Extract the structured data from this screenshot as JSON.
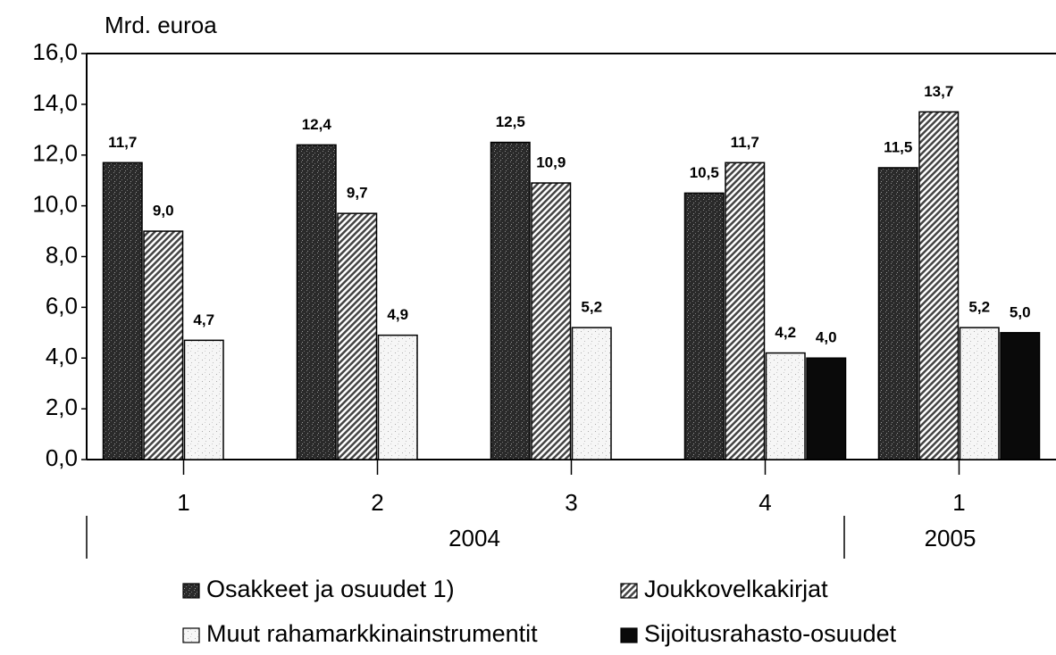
{
  "chart_data": {
    "type": "bar",
    "y_label": "Mrd. euroa",
    "categories": [
      "1",
      "2",
      "3",
      "4",
      "1"
    ],
    "year_groups": [
      {
        "label": "2004",
        "size": 4
      },
      {
        "label": "2005",
        "size": 1
      }
    ],
    "series": [
      {
        "name": "Osakkeet ja osuudet 1)",
        "color": "#2a2a2a",
        "pattern": "speckle",
        "values": [
          11.7,
          12.4,
          12.5,
          10.5,
          11.5
        ],
        "value_labels": [
          "11,7",
          "12,4",
          "12,5",
          "10,5",
          "11,5"
        ]
      },
      {
        "name": "Joukkovelkakirjat",
        "color": "#555555",
        "pattern": "hatch",
        "values": [
          9.0,
          9.7,
          10.9,
          11.7,
          13.7
        ],
        "value_labels": [
          "9,0",
          "9,7",
          "10,9",
          "11,7",
          "13,7"
        ]
      },
      {
        "name": "Muut rahamarkkinainstrumentit",
        "color": "#f2f2f2",
        "pattern": "speckle-light",
        "values": [
          4.7,
          4.9,
          5.2,
          4.2,
          5.2
        ],
        "value_labels": [
          "4,7",
          "4,9",
          "5,2",
          "4,2",
          "5,2"
        ]
      },
      {
        "name": "Sijoitusrahasto-osuudet",
        "color": "#0a0a0a",
        "pattern": "solid",
        "values": [
          null,
          null,
          null,
          4.0,
          5.0
        ],
        "value_labels": [
          null,
          null,
          null,
          "4,0",
          "5,0"
        ]
      }
    ],
    "ylim": [
      0,
      16
    ],
    "yticks": [
      {
        "value": 0,
        "label": "0,0"
      },
      {
        "value": 2,
        "label": "2,0"
      },
      {
        "value": 4,
        "label": "4,0"
      },
      {
        "value": 6,
        "label": "6,0"
      },
      {
        "value": 8,
        "label": "8,0"
      },
      {
        "value": 10,
        "label": "10,0"
      },
      {
        "value": 12,
        "label": "12,0"
      },
      {
        "value": 14,
        "label": "14,0"
      },
      {
        "value": 16,
        "label": "16,0"
      }
    ],
    "legend": "bottom"
  }
}
